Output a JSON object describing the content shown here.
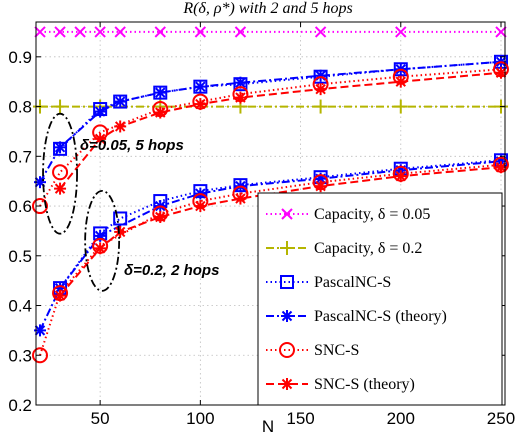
{
  "chart_data": {
    "type": "line",
    "title": "R(δ, ρ*) with 2 and 5 hops",
    "xlabel": "N",
    "ylabel": "",
    "xlim": [
      18,
      252
    ],
    "ylim": [
      0.2,
      0.97
    ],
    "xticks": [
      50,
      100,
      150,
      200,
      250
    ],
    "yticks": [
      0.2,
      0.3,
      0.4,
      0.5,
      0.6,
      0.7,
      0.8,
      0.9
    ],
    "xtick_labels": [
      "50",
      "100",
      "150",
      "200",
      "250"
    ],
    "ytick_labels": [
      "0.2",
      "0.3",
      "0.4",
      "0.5",
      "0.6",
      "0.7",
      "0.8",
      "0.9"
    ],
    "grid": true,
    "legend_position": "bottom-right",
    "series": [
      {
        "name": "Capacity, δ = 0.05",
        "color": "#ff00ff",
        "line": "dotted",
        "marker": "x",
        "x": [
          20,
          30,
          40,
          50,
          60,
          80,
          100,
          120,
          160,
          200,
          250
        ],
        "y": [
          0.95,
          0.95,
          0.95,
          0.95,
          0.95,
          0.95,
          0.95,
          0.95,
          0.95,
          0.95,
          0.95
        ]
      },
      {
        "name": "Capacity, δ = 0.2",
        "color": "#b5b500",
        "line": "dashdot",
        "marker": "plus",
        "x": [
          20,
          30,
          50,
          80,
          120,
          160,
          200,
          250
        ],
        "y": [
          0.8,
          0.8,
          0.8,
          0.8,
          0.8,
          0.8,
          0.8,
          0.8
        ]
      },
      {
        "name": "PascalNC-S",
        "color": "#0000ff",
        "line": "dotted",
        "marker": "square",
        "x": [
          30,
          50,
          60,
          80,
          100,
          120,
          160,
          200,
          250
        ],
        "y": [
          0.715,
          0.795,
          0.81,
          0.828,
          0.84,
          0.845,
          0.86,
          0.875,
          0.89
        ]
      },
      {
        "name": "PascalNC-S (theory)",
        "color": "#0000ff",
        "line": "dashdot",
        "marker": "asterisk",
        "x": [
          20,
          30,
          50,
          60,
          80,
          100,
          120,
          160,
          200,
          250
        ],
        "y": [
          0.648,
          0.718,
          0.79,
          0.81,
          0.828,
          0.84,
          0.848,
          0.862,
          0.875,
          0.89
        ]
      },
      {
        "name": "SNC-S",
        "color": "#ff0000",
        "line": "dotted",
        "marker": "circle",
        "x": [
          20,
          30,
          50,
          80,
          100,
          120,
          160,
          200,
          250
        ],
        "y": [
          0.6,
          0.668,
          0.748,
          0.795,
          0.81,
          0.825,
          0.845,
          0.86,
          0.875
        ]
      },
      {
        "name": "SNC-S (theory)",
        "color": "#ff0000",
        "line": "dashed",
        "marker": "asterisk",
        "x": [
          30,
          50,
          60,
          80,
          100,
          120,
          160,
          200,
          250
        ],
        "y": [
          0.635,
          0.735,
          0.76,
          0.788,
          0.805,
          0.818,
          0.835,
          0.85,
          0.868
        ]
      },
      {
        "name": "",
        "color": "#0000ff",
        "line": "dotted",
        "marker": "square",
        "x": [
          30,
          50,
          60,
          80,
          100,
          120,
          160,
          200,
          250
        ],
        "y": [
          0.435,
          0.545,
          0.575,
          0.61,
          0.63,
          0.642,
          0.658,
          0.675,
          0.692
        ]
      },
      {
        "name": "",
        "color": "#0000ff",
        "line": "dashdot",
        "marker": "asterisk",
        "x": [
          20,
          30,
          50,
          80,
          100,
          120,
          160,
          200,
          250
        ],
        "y": [
          0.35,
          0.435,
          0.54,
          0.6,
          0.625,
          0.64,
          0.655,
          0.672,
          0.69
        ]
      },
      {
        "name": "",
        "color": "#ff0000",
        "line": "dotted",
        "marker": "circle",
        "x": [
          20,
          30,
          50,
          80,
          100,
          120,
          160,
          200,
          250
        ],
        "y": [
          0.3,
          0.425,
          0.52,
          0.585,
          0.61,
          0.625,
          0.648,
          0.665,
          0.683
        ]
      },
      {
        "name": "",
        "color": "#ff0000",
        "line": "dashed",
        "marker": "asterisk",
        "x": [
          30,
          50,
          60,
          80,
          100,
          120,
          160,
          200,
          250
        ],
        "y": [
          0.42,
          0.515,
          0.548,
          0.578,
          0.6,
          0.615,
          0.64,
          0.66,
          0.678
        ]
      }
    ],
    "annotations": [
      {
        "text": "δ=0.05, 5 hops"
      },
      {
        "text": "δ=0.2, 2 hops"
      }
    ]
  }
}
